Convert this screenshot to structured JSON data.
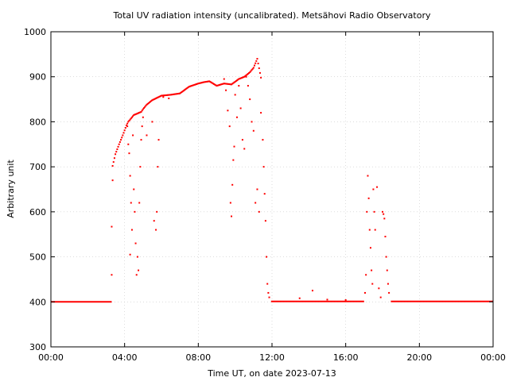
{
  "chart_data": {
    "type": "scatter",
    "title": "Total UV radiation intensity (uncalibrated). Metsähovi Radio Observatory",
    "xlabel": "Time UT, on date 2023-07-13",
    "ylabel": "Arbitrary unit",
    "xlim": [
      0,
      24
    ],
    "ylim": [
      300,
      1000
    ],
    "xtick_values": [
      0,
      4,
      8,
      12,
      16,
      20,
      24
    ],
    "xtick_labels": [
      "00:00",
      "04:00",
      "08:00",
      "12:00",
      "16:00",
      "20:00",
      "00:00"
    ],
    "ytick_values": [
      300,
      400,
      500,
      600,
      700,
      800,
      900,
      1000
    ],
    "ytick_labels": [
      "300",
      "400",
      "500",
      "600",
      "700",
      "800",
      "900",
      "1000"
    ],
    "grid": true,
    "marker_color": "#ff0000",
    "series": [
      {
        "baseline_segments": [
          {
            "x_start": 0.0,
            "x_end": 3.3,
            "y": 400
          },
          {
            "x_start": 11.95,
            "x_end": 17.0,
            "y": 401
          },
          {
            "x_start": 18.45,
            "x_end": 24.0,
            "y": 401
          }
        ],
        "envelope": [
          [
            3.35,
            702
          ],
          [
            3.5,
            728
          ],
          [
            3.7,
            750
          ],
          [
            3.9,
            770
          ],
          [
            4.1,
            792
          ],
          [
            4.2,
            800
          ],
          [
            4.5,
            815
          ],
          [
            4.9,
            822
          ],
          [
            5.0,
            828
          ],
          [
            5.2,
            838
          ],
          [
            5.5,
            848
          ],
          [
            6.0,
            858
          ],
          [
            6.5,
            860
          ],
          [
            7.0,
            863
          ],
          [
            7.5,
            878
          ],
          [
            8.0,
            885
          ],
          [
            8.3,
            888
          ],
          [
            8.6,
            890
          ],
          [
            9.0,
            880
          ],
          [
            9.4,
            885
          ],
          [
            9.8,
            883
          ],
          [
            10.2,
            895
          ],
          [
            10.5,
            900
          ],
          [
            10.8,
            910
          ],
          [
            11.0,
            920
          ],
          [
            11.2,
            940
          ],
          [
            11.4,
            898
          ]
        ],
        "scatter_points": [
          [
            3.3,
            460
          ],
          [
            3.3,
            567
          ],
          [
            3.35,
            670
          ],
          [
            4.15,
            790
          ],
          [
            4.2,
            750
          ],
          [
            4.25,
            730
          ],
          [
            4.3,
            680
          ],
          [
            4.3,
            505
          ],
          [
            4.35,
            620
          ],
          [
            4.4,
            560
          ],
          [
            4.45,
            770
          ],
          [
            4.5,
            650
          ],
          [
            4.55,
            600
          ],
          [
            4.6,
            530
          ],
          [
            4.65,
            460
          ],
          [
            4.7,
            500
          ],
          [
            4.75,
            470
          ],
          [
            4.8,
            620
          ],
          [
            4.85,
            700
          ],
          [
            4.9,
            760
          ],
          [
            4.95,
            790
          ],
          [
            5.0,
            810
          ],
          [
            5.2,
            770
          ],
          [
            5.5,
            800
          ],
          [
            5.6,
            580
          ],
          [
            5.7,
            560
          ],
          [
            5.75,
            600
          ],
          [
            5.8,
            700
          ],
          [
            5.85,
            760
          ],
          [
            6.1,
            855
          ],
          [
            6.4,
            852
          ],
          [
            9.4,
            895
          ],
          [
            9.5,
            870
          ],
          [
            9.6,
            825
          ],
          [
            9.7,
            790
          ],
          [
            9.75,
            620
          ],
          [
            9.8,
            590
          ],
          [
            9.85,
            660
          ],
          [
            9.9,
            715
          ],
          [
            9.95,
            745
          ],
          [
            10.0,
            860
          ],
          [
            10.1,
            810
          ],
          [
            10.2,
            880
          ],
          [
            10.3,
            830
          ],
          [
            10.4,
            760
          ],
          [
            10.5,
            740
          ],
          [
            10.6,
            900
          ],
          [
            10.7,
            880
          ],
          [
            10.8,
            850
          ],
          [
            10.9,
            800
          ],
          [
            11.0,
            780
          ],
          [
            11.1,
            620
          ],
          [
            11.2,
            650
          ],
          [
            11.3,
            600
          ],
          [
            11.4,
            820
          ],
          [
            11.5,
            760
          ],
          [
            11.55,
            700
          ],
          [
            11.6,
            640
          ],
          [
            11.65,
            580
          ],
          [
            11.7,
            500
          ],
          [
            11.75,
            440
          ],
          [
            11.8,
            420
          ],
          [
            11.85,
            410
          ],
          [
            13.5,
            408
          ],
          [
            14.2,
            425
          ],
          [
            15.0,
            405
          ],
          [
            16.0,
            404
          ],
          [
            17.05,
            420
          ],
          [
            17.1,
            460
          ],
          [
            17.15,
            600
          ],
          [
            17.2,
            680
          ],
          [
            17.25,
            630
          ],
          [
            17.3,
            560
          ],
          [
            17.35,
            520
          ],
          [
            17.4,
            470
          ],
          [
            17.45,
            440
          ],
          [
            17.5,
            650
          ],
          [
            17.55,
            600
          ],
          [
            17.6,
            560
          ],
          [
            17.7,
            655
          ],
          [
            17.8,
            430
          ],
          [
            17.9,
            410
          ],
          [
            18.0,
            600
          ],
          [
            18.05,
            595
          ],
          [
            18.1,
            585
          ],
          [
            18.15,
            545
          ],
          [
            18.2,
            500
          ],
          [
            18.25,
            470
          ],
          [
            18.3,
            440
          ],
          [
            18.35,
            420
          ]
        ]
      }
    ]
  }
}
